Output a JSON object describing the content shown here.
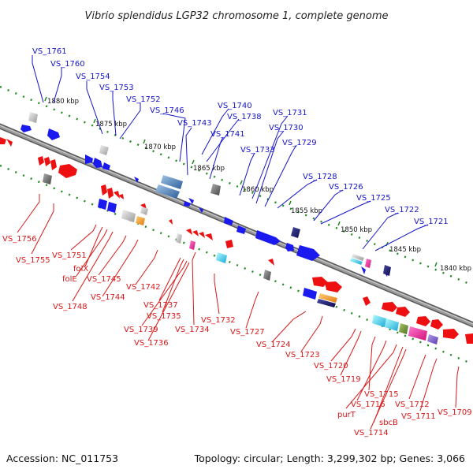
{
  "title": "Vibrio splendidus LGP32 chromosome 1, complete genome",
  "footer": {
    "accession": "Accession: NC_011753",
    "summary": "Topology: circular; Length: 3,299,302 bp; Genes: 3,066"
  },
  "colors": {
    "backbone": "#8a8a8a",
    "forward_label": "#1515c8",
    "reverse_label": "#d81818",
    "forward_gene": "#1a1af0",
    "reverse_gene": "#ee1010",
    "dotted_track": "#1f8a1f"
  },
  "scale_marks": [
    "1880 kbp",
    "1875 kbp",
    "1870 kbp",
    "1865 kbp",
    "1860 kbp",
    "1855 kbp",
    "1850 kbp",
    "1845 kbp",
    "1840 kbp"
  ],
  "forward_labels": [
    "VS_1761",
    "VS_1760",
    "VS_1754",
    "VS_1753",
    "VS_1752",
    "VS_1746",
    "VS_1743",
    "VS_1740",
    "VS_1738",
    "VS_1741",
    "VS_1733",
    "VS_1731",
    "VS_1730",
    "VS_1729",
    "VS_1728",
    "VS_1726",
    "VS_1725",
    "VS_1722",
    "VS_1721"
  ],
  "reverse_labels": [
    "VS_1756",
    "VS_1755",
    "VS_1751",
    "folX",
    "folE",
    "VS_1748",
    "VS_1745",
    "VS_1744",
    "VS_1742",
    "VS_1737",
    "VS_1735",
    "VS_1739",
    "VS_1736",
    "VS_1734",
    "VS_1732",
    "VS_1727",
    "VS_1724",
    "VS_1723",
    "VS_1720",
    "VS_1719",
    "VS_1715",
    "VS_1716",
    "purT",
    "sbcB",
    "VS_1714",
    "VS_1712",
    "VS_1711",
    "VS_1709"
  ]
}
